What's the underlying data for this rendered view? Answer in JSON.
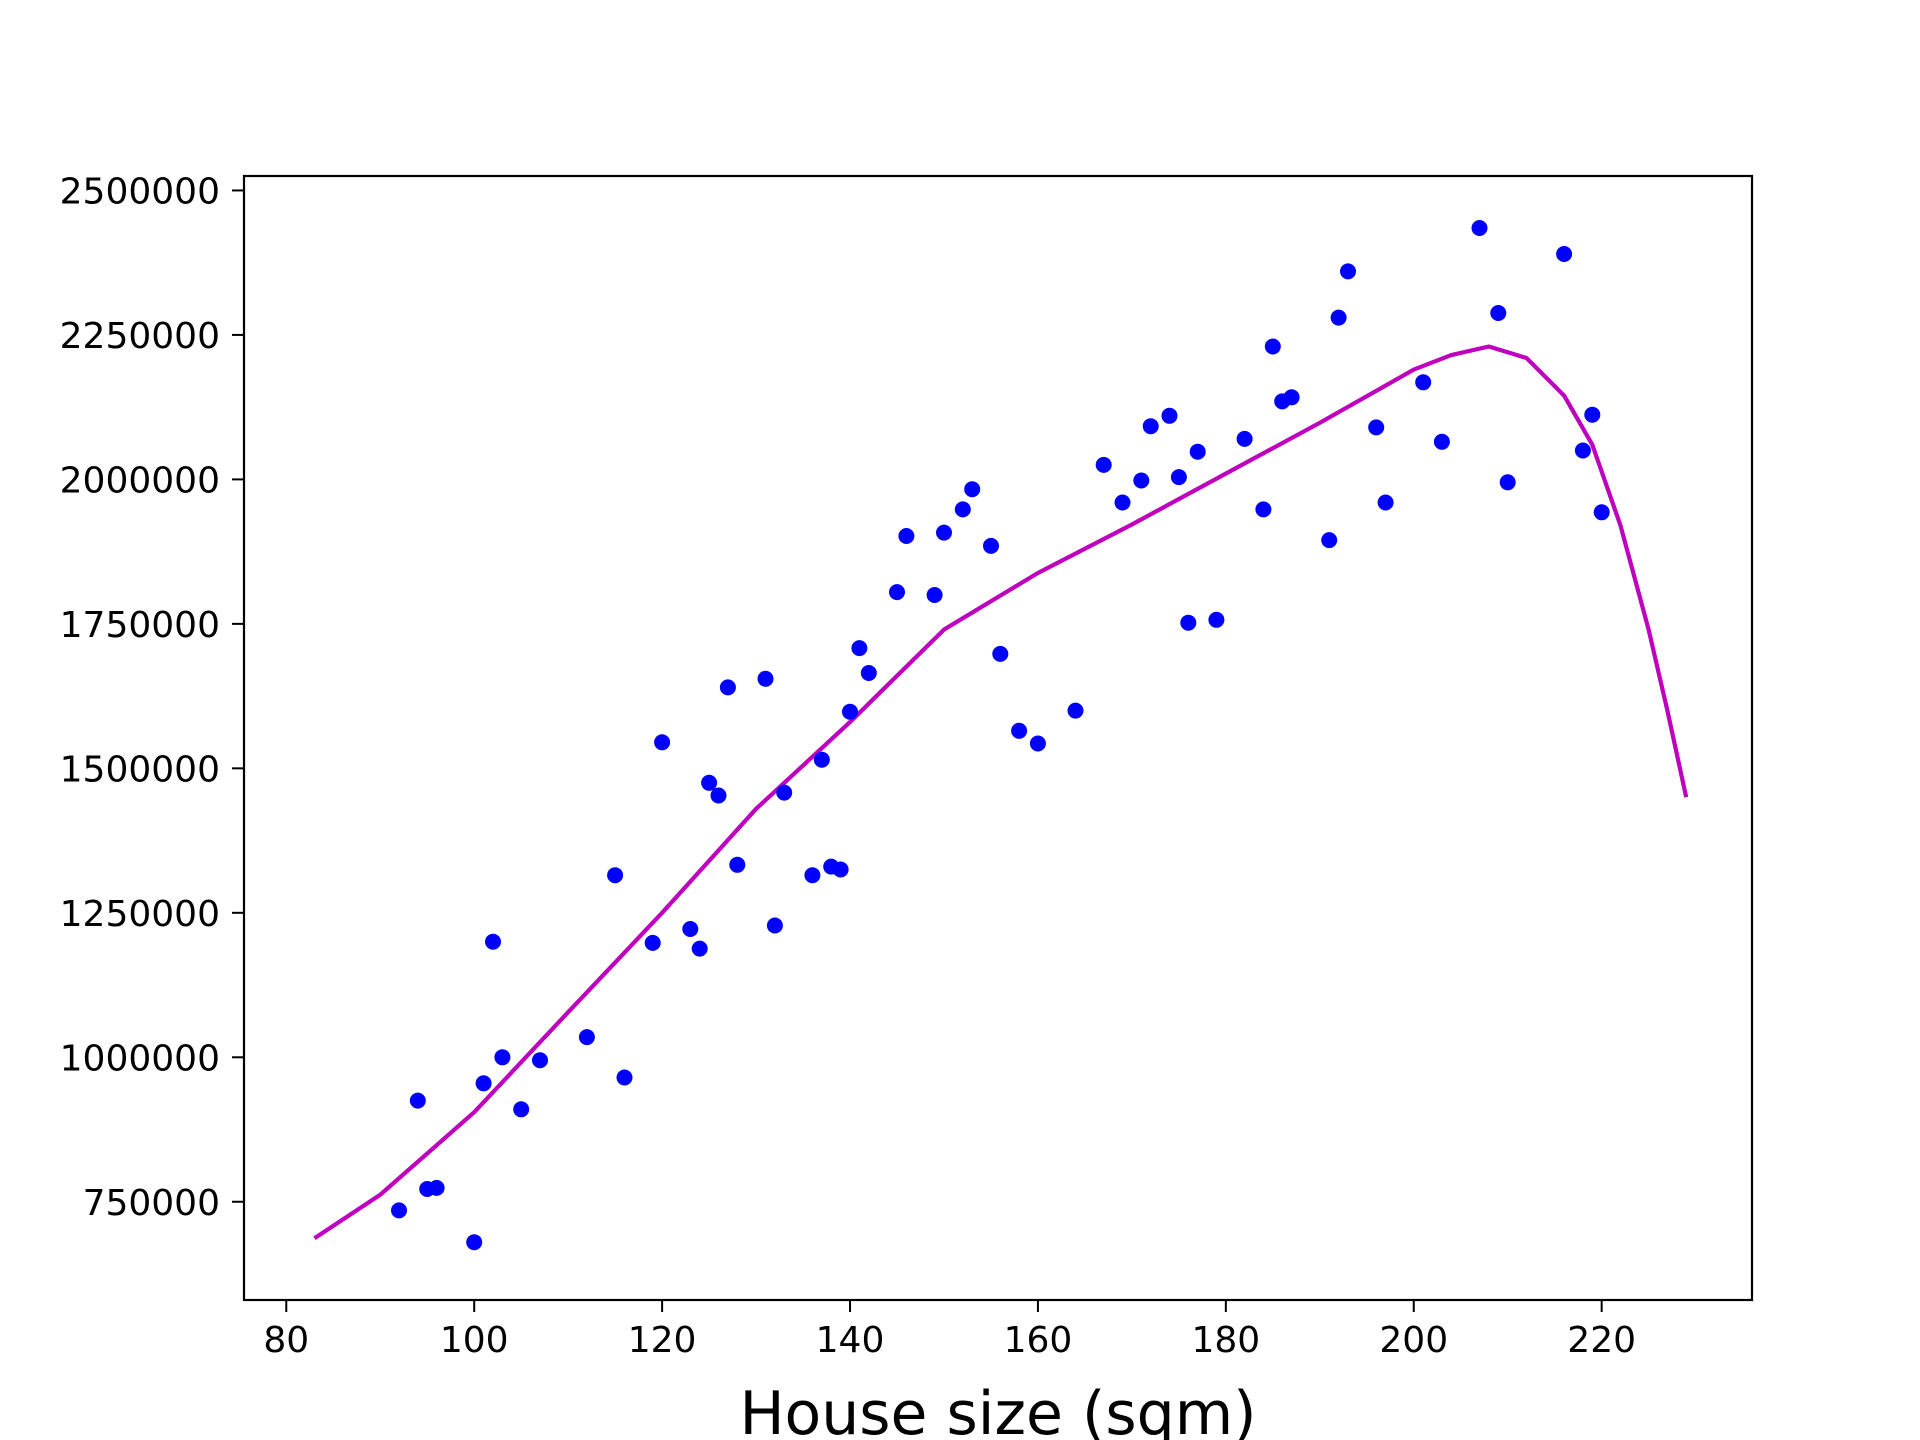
{
  "chart_data": {
    "type": "scatter",
    "title": "",
    "xlabel": "House size (sqm)",
    "ylabel": "",
    "xlim": [
      75.5,
      236
    ],
    "ylim": [
      580000,
      2525000
    ],
    "x_ticks": [
      80,
      100,
      120,
      140,
      160,
      180,
      200,
      220
    ],
    "x_tick_labels": [
      "80",
      "100",
      "120",
      "140",
      "160",
      "180",
      "200",
      "220"
    ],
    "y_ticks": [
      750000,
      1000000,
      1250000,
      1500000,
      1750000,
      2000000,
      2250000,
      2500000
    ],
    "y_tick_labels": [
      "750000",
      "1000000",
      "1250000",
      "1500000",
      "1750000",
      "2000000",
      "2250000",
      "2500000"
    ],
    "grid": false,
    "series": [
      {
        "kind": "scatter",
        "color": "#0000ff",
        "points": [
          [
            92,
            735000
          ],
          [
            94,
            925000
          ],
          [
            95,
            772000
          ],
          [
            96,
            774000
          ],
          [
            100,
            680000
          ],
          [
            101,
            955000
          ],
          [
            102,
            1200000
          ],
          [
            103,
            1000000
          ],
          [
            105,
            910000
          ],
          [
            107,
            995000
          ],
          [
            112,
            1035000
          ],
          [
            115,
            1315000
          ],
          [
            116,
            965000
          ],
          [
            119,
            1198000
          ],
          [
            120,
            1545000
          ],
          [
            123,
            1222000
          ],
          [
            124,
            1188000
          ],
          [
            125,
            1475000
          ],
          [
            126,
            1453000
          ],
          [
            127,
            1640000
          ],
          [
            128,
            1333000
          ],
          [
            131,
            1655000
          ],
          [
            132,
            1228000
          ],
          [
            133,
            1458000
          ],
          [
            136,
            1315000
          ],
          [
            137,
            1515000
          ],
          [
            138,
            1330000
          ],
          [
            139,
            1325000
          ],
          [
            140,
            1598000
          ],
          [
            141,
            1708000
          ],
          [
            142,
            1665000
          ],
          [
            145,
            1805000
          ],
          [
            146,
            1902000
          ],
          [
            149,
            1800000
          ],
          [
            150,
            1908000
          ],
          [
            152,
            1948000
          ],
          [
            153,
            1983000
          ],
          [
            155,
            1885000
          ],
          [
            156,
            1698000
          ],
          [
            158,
            1565000
          ],
          [
            160,
            1543000
          ],
          [
            164,
            1600000
          ],
          [
            167,
            2025000
          ],
          [
            169,
            1960000
          ],
          [
            171,
            1998000
          ],
          [
            172,
            2092000
          ],
          [
            174,
            2110000
          ],
          [
            175,
            2004000
          ],
          [
            176,
            1752000
          ],
          [
            177,
            2048000
          ],
          [
            179,
            1757000
          ],
          [
            182,
            2070000
          ],
          [
            184,
            1948000
          ],
          [
            185,
            2230000
          ],
          [
            186,
            2135000
          ],
          [
            187,
            2142000
          ],
          [
            191,
            1895000
          ],
          [
            192,
            2280000
          ],
          [
            193,
            2360000
          ],
          [
            196,
            2090000
          ],
          [
            197,
            1960000
          ],
          [
            201,
            2168000
          ],
          [
            203,
            2065000
          ],
          [
            207,
            2435000
          ],
          [
            209,
            2288000
          ],
          [
            210,
            1995000
          ],
          [
            216,
            2390000
          ],
          [
            218,
            2050000
          ],
          [
            219,
            2112000
          ],
          [
            220,
            1943000
          ]
        ]
      },
      {
        "kind": "line",
        "color": "#bf00bf",
        "points": [
          [
            83,
            687000
          ],
          [
            90,
            762000
          ],
          [
            100,
            905000
          ],
          [
            110,
            1078000
          ],
          [
            120,
            1250000
          ],
          [
            130,
            1430000
          ],
          [
            140,
            1580000
          ],
          [
            150,
            1740000
          ],
          [
            160,
            1838000
          ],
          [
            170,
            1922000
          ],
          [
            180,
            2010000
          ],
          [
            190,
            2098000
          ],
          [
            200,
            2190000
          ],
          [
            204,
            2215000
          ],
          [
            208,
            2230000
          ],
          [
            212,
            2210000
          ],
          [
            216,
            2145000
          ],
          [
            219,
            2060000
          ],
          [
            222,
            1920000
          ],
          [
            225,
            1740000
          ],
          [
            227,
            1600000
          ],
          [
            229,
            1450000
          ]
        ]
      }
    ]
  }
}
